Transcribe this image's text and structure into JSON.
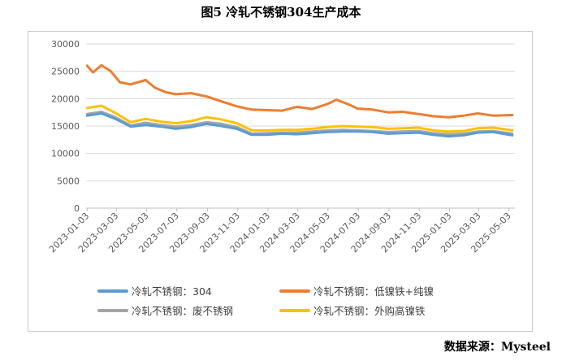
{
  "title": "图5 冷轧不锈钢304生产成本",
  "source": "数据来源：Mysteel",
  "chart_data": {
    "type": "line",
    "title": "图5 冷轧不锈钢304生产成本",
    "ylim": [
      0,
      30000
    ],
    "yticks": [
      0,
      5000,
      10000,
      15000,
      20000,
      25000,
      30000
    ],
    "xrange": [
      "2023-01-01",
      "2025-05-15"
    ],
    "xticks": [
      "2023-01-03",
      "2023-03-03",
      "2023-05-03",
      "2023-07-03",
      "2023-09-03",
      "2023-11-03",
      "2024-01-03",
      "2024-03-03",
      "2024-05-03",
      "2024-07-03",
      "2024-09-03",
      "2024-11-03",
      "2025-01-03",
      "2025-03-03",
      "2025-05-03"
    ],
    "grid": "horizontal",
    "legend_position": "bottom",
    "series": [
      {
        "name": "冷轧不锈钢：304",
        "color": "#5b9bd5",
        "points": [
          [
            "2023-01-03",
            16900
          ],
          [
            "2023-02-01",
            17300
          ],
          [
            "2023-03-01",
            16300
          ],
          [
            "2023-04-01",
            14900
          ],
          [
            "2023-05-01",
            15200
          ],
          [
            "2023-06-01",
            14900
          ],
          [
            "2023-07-01",
            14500
          ],
          [
            "2023-08-01",
            14800
          ],
          [
            "2023-09-01",
            15400
          ],
          [
            "2023-10-01",
            15000
          ],
          [
            "2023-11-01",
            14500
          ],
          [
            "2023-12-01",
            13400
          ],
          [
            "2024-01-01",
            13400
          ],
          [
            "2024-02-01",
            13600
          ],
          [
            "2024-03-01",
            13500
          ],
          [
            "2024-04-01",
            13700
          ],
          [
            "2024-05-01",
            13900
          ],
          [
            "2024-06-01",
            14000
          ],
          [
            "2024-07-01",
            14000
          ],
          [
            "2024-08-01",
            13900
          ],
          [
            "2024-09-01",
            13600
          ],
          [
            "2024-10-01",
            13700
          ],
          [
            "2024-11-01",
            13800
          ],
          [
            "2024-12-01",
            13400
          ],
          [
            "2025-01-01",
            13100
          ],
          [
            "2025-02-01",
            13300
          ],
          [
            "2025-03-01",
            13800
          ],
          [
            "2025-04-01",
            13900
          ],
          [
            "2025-05-10",
            13300
          ]
        ]
      },
      {
        "name": "冷轧不锈钢：低镍铁+纯镍",
        "color": "#ed7d31",
        "points": [
          [
            "2023-01-03",
            26000
          ],
          [
            "2023-01-15",
            24800
          ],
          [
            "2023-02-01",
            26100
          ],
          [
            "2023-02-20",
            25000
          ],
          [
            "2023-03-10",
            23000
          ],
          [
            "2023-04-01",
            22600
          ],
          [
            "2023-05-01",
            23400
          ],
          [
            "2023-05-20",
            22000
          ],
          [
            "2023-06-10",
            21200
          ],
          [
            "2023-07-01",
            20800
          ],
          [
            "2023-08-01",
            21000
          ],
          [
            "2023-09-01",
            20400
          ],
          [
            "2023-10-01",
            19500
          ],
          [
            "2023-11-01",
            18600
          ],
          [
            "2023-12-01",
            18000
          ],
          [
            "2024-01-01",
            17900
          ],
          [
            "2024-02-01",
            17800
          ],
          [
            "2024-03-01",
            18500
          ],
          [
            "2024-04-01",
            18100
          ],
          [
            "2024-05-01",
            19000
          ],
          [
            "2024-05-20",
            19800
          ],
          [
            "2024-06-15",
            18900
          ],
          [
            "2024-07-01",
            18200
          ],
          [
            "2024-08-01",
            18000
          ],
          [
            "2024-09-01",
            17500
          ],
          [
            "2024-10-01",
            17600
          ],
          [
            "2024-11-01",
            17200
          ],
          [
            "2024-12-01",
            16800
          ],
          [
            "2025-01-01",
            16600
          ],
          [
            "2025-02-01",
            16900
          ],
          [
            "2025-03-01",
            17300
          ],
          [
            "2025-04-01",
            16900
          ],
          [
            "2025-05-10",
            17000
          ]
        ]
      },
      {
        "name": "冷轧不锈钢：废不锈钢",
        "color": "#a5a5a5",
        "points": [
          [
            "2023-01-03",
            17200
          ],
          [
            "2023-02-01",
            17600
          ],
          [
            "2023-03-01",
            16600
          ],
          [
            "2023-04-01",
            15100
          ],
          [
            "2023-05-01",
            15600
          ],
          [
            "2023-06-01",
            15200
          ],
          [
            "2023-07-01",
            14900
          ],
          [
            "2023-08-01",
            15200
          ],
          [
            "2023-09-01",
            15700
          ],
          [
            "2023-10-01",
            15400
          ],
          [
            "2023-11-01",
            14800
          ],
          [
            "2023-12-01",
            13600
          ],
          [
            "2024-01-01",
            13700
          ],
          [
            "2024-02-01",
            13800
          ],
          [
            "2024-03-01",
            13800
          ],
          [
            "2024-04-01",
            14000
          ],
          [
            "2024-05-01",
            14200
          ],
          [
            "2024-06-01",
            14300
          ],
          [
            "2024-07-01",
            14200
          ],
          [
            "2024-08-01",
            14100
          ],
          [
            "2024-09-01",
            13900
          ],
          [
            "2024-10-01",
            14000
          ],
          [
            "2024-11-01",
            14100
          ],
          [
            "2024-12-01",
            13700
          ],
          [
            "2025-01-01",
            13500
          ],
          [
            "2025-02-01",
            13600
          ],
          [
            "2025-03-01",
            14000
          ],
          [
            "2025-04-01",
            14100
          ],
          [
            "2025-05-10",
            13600
          ]
        ]
      },
      {
        "name": "冷轧不锈钢：外购高镍铁",
        "color": "#ffc000",
        "points": [
          [
            "2023-01-03",
            18300
          ],
          [
            "2023-02-01",
            18700
          ],
          [
            "2023-03-01",
            17400
          ],
          [
            "2023-04-01",
            15700
          ],
          [
            "2023-05-01",
            16300
          ],
          [
            "2023-06-01",
            15800
          ],
          [
            "2023-07-01",
            15500
          ],
          [
            "2023-08-01",
            15900
          ],
          [
            "2023-09-01",
            16600
          ],
          [
            "2023-10-01",
            16200
          ],
          [
            "2023-11-01",
            15500
          ],
          [
            "2023-12-01",
            14200
          ],
          [
            "2024-01-01",
            14200
          ],
          [
            "2024-02-01",
            14300
          ],
          [
            "2024-03-01",
            14300
          ],
          [
            "2024-04-01",
            14500
          ],
          [
            "2024-05-01",
            14800
          ],
          [
            "2024-06-01",
            15000
          ],
          [
            "2024-07-01",
            14900
          ],
          [
            "2024-08-01",
            14800
          ],
          [
            "2024-09-01",
            14500
          ],
          [
            "2024-10-01",
            14600
          ],
          [
            "2024-11-01",
            14700
          ],
          [
            "2024-12-01",
            14200
          ],
          [
            "2025-01-01",
            14000
          ],
          [
            "2025-02-01",
            14100
          ],
          [
            "2025-03-01",
            14600
          ],
          [
            "2025-04-01",
            14700
          ],
          [
            "2025-05-10",
            14200
          ]
        ]
      }
    ]
  }
}
